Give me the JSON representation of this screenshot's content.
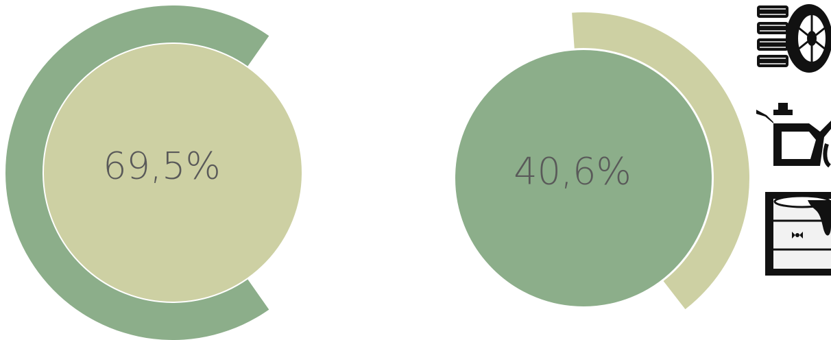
{
  "chart_data": [
    {
      "type": "pie",
      "title": "",
      "value_percent": 69.5,
      "label": "69,5%",
      "ring_color": "#8cae8a",
      "disc_color": "#cdd0a3"
    },
    {
      "type": "pie",
      "title": "",
      "value_percent": 40.6,
      "label": "40,6%",
      "ring_color": "#cdd0a3",
      "disc_color": "#8cae8a"
    }
  ],
  "text_color": "#595959",
  "icons": [
    "tires-icon",
    "oil-can-icon",
    "oil-barrel-icon"
  ]
}
